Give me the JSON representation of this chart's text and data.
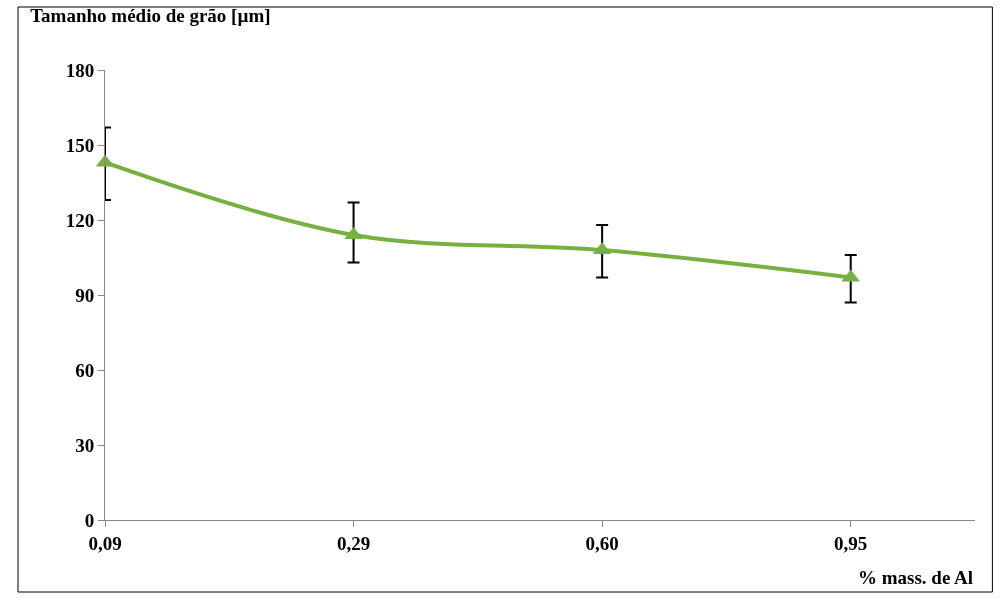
{
  "chart_data": {
    "type": "line",
    "title": "Tamanho médio de grão [µm]",
    "xlabel": "% mass. de Al",
    "categories": [
      "0,09",
      "0,29",
      "0,60",
      "0,95"
    ],
    "series": [
      {
        "color": "#77b041",
        "values": [
          143,
          114,
          108,
          97
        ],
        "errors": [
          [
            128,
            157
          ],
          [
            103,
            127
          ],
          [
            97,
            118
          ],
          [
            87,
            106
          ]
        ]
      }
    ],
    "ylim": [
      0,
      180
    ],
    "yticks": [
      0,
      30,
      60,
      90,
      120,
      150,
      180
    ],
    "legend": false,
    "marker": "triangle",
    "line_style": "solid"
  }
}
